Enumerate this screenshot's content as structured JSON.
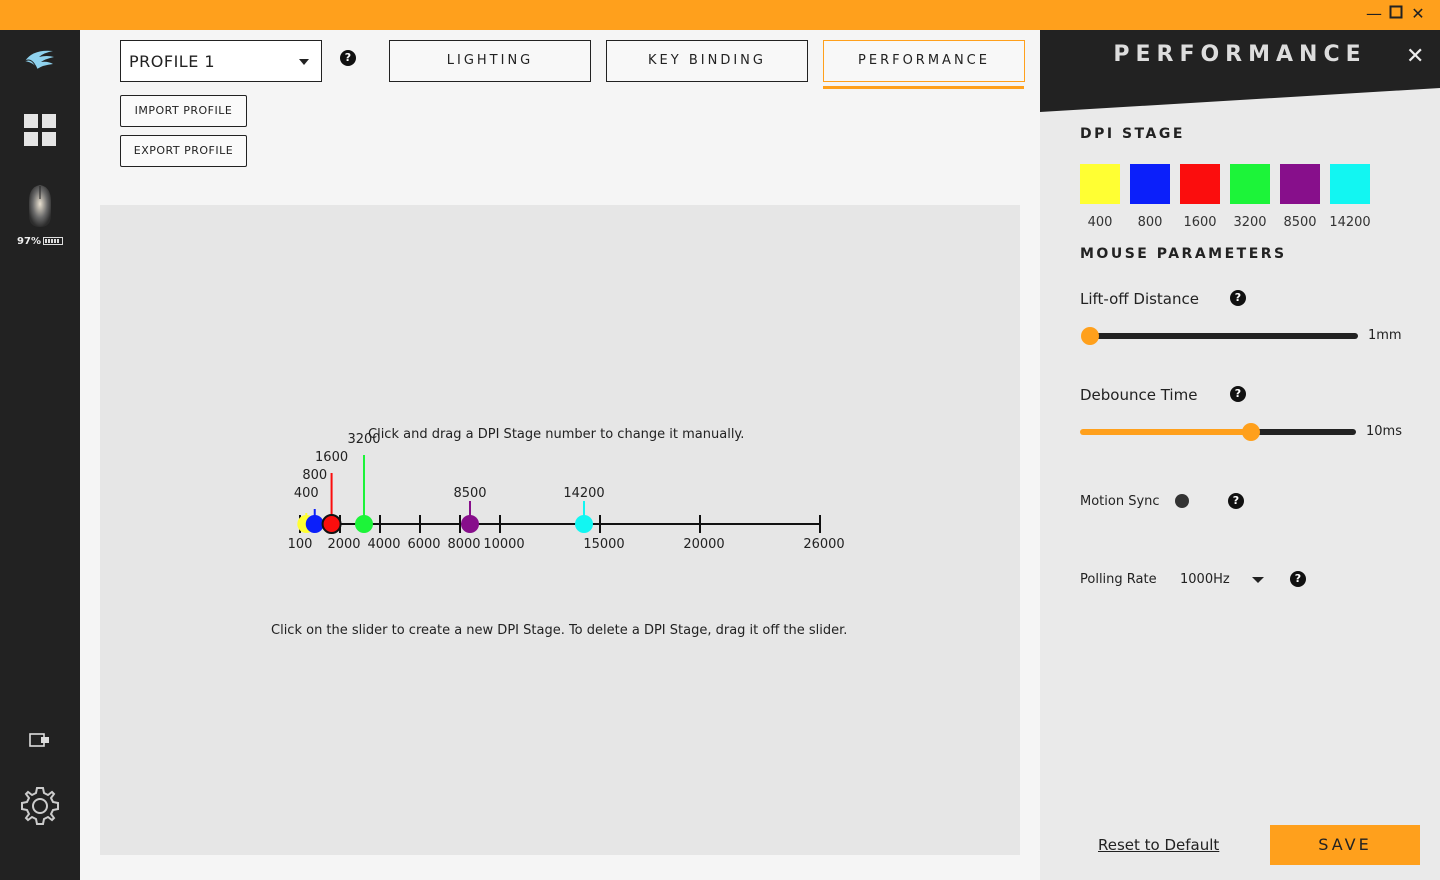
{
  "window_controls": [
    "minimize",
    "maximize",
    "close"
  ],
  "nav": {
    "logo_icon": "wing-logo-icon",
    "dashboard_icon": "grid-icon",
    "device_icon": "mouse-icon",
    "battery_text": "97%",
    "device_switch_icon": "device-switch-icon",
    "settings_icon": "gear-icon"
  },
  "header": {
    "profile_selected": "PROFILE 1",
    "tabs": [
      {
        "label": "LIGHTING",
        "active": false
      },
      {
        "label": "KEY BINDING",
        "active": false
      },
      {
        "label": "PERFORMANCE",
        "active": true
      }
    ],
    "import_label": "IMPORT PROFILE",
    "export_label": "EXPORT PROFILE"
  },
  "dpi_slider": {
    "hint_top": "Click and drag a DPI Stage number to change it manually.",
    "hint_bottom": "Click on the slider to create a new DPI Stage. To delete a DPI Stage, drag it off the slider.",
    "ticks": [
      "100",
      "2000",
      "4000",
      "6000",
      "8000",
      "10000",
      "15000",
      "20000",
      "26000"
    ],
    "tick_values": [
      100,
      2000,
      4000,
      6000,
      8000,
      10000,
      15000,
      20000,
      26000
    ],
    "stages": [
      {
        "value": 400,
        "label": "400",
        "color": "#ffff33"
      },
      {
        "value": 800,
        "label": "800",
        "color": "#0b1ffa"
      },
      {
        "value": 1600,
        "label": "1600",
        "color": "#fb0d0d"
      },
      {
        "value": 3200,
        "label": "3200",
        "color": "#1cf439"
      },
      {
        "value": 8500,
        "label": "8500",
        "color": "#870f8b"
      },
      {
        "value": 14200,
        "label": "14200",
        "color": "#12f6f2"
      }
    ]
  },
  "side": {
    "title": "PERFORMANCE",
    "dpi_stage_title": "DPI STAGE",
    "swatches": [
      {
        "label": "400",
        "color": "#ffff33"
      },
      {
        "label": "800",
        "color": "#0b1ffa"
      },
      {
        "label": "1600",
        "color": "#fb0d0d"
      },
      {
        "label": "3200",
        "color": "#1cf439"
      },
      {
        "label": "8500",
        "color": "#870f8b"
      },
      {
        "label": "14200",
        "color": "#12f6f2"
      }
    ],
    "mouse_params_title": "MOUSE PARAMETERS",
    "lift_off_label": "Lift-off Distance",
    "lift_off_value": "1mm",
    "lift_off_fraction": 0.0,
    "debounce_label": "Debounce Time",
    "debounce_value": "10ms",
    "debounce_fraction": 0.62,
    "motion_sync_label": "Motion Sync",
    "polling_label": "Polling Rate",
    "polling_value": "1000Hz",
    "reset_label": "Reset to Default",
    "save_label": "SAVE"
  },
  "colors": {
    "accent": "#ffa01c",
    "dark": "#222222"
  }
}
